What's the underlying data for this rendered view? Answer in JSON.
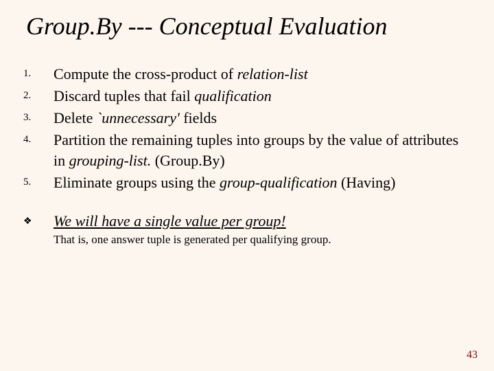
{
  "colors": {
    "background": "#fdf6ee",
    "text": "#000000",
    "page_number": "#8b0000"
  },
  "typography": {
    "family": "Times New Roman",
    "title_size_pt": 36,
    "title_style": "italic",
    "body_size_pt": 22,
    "list_number_size_pt": 15,
    "subnote_size_pt": 17,
    "page_number_size_pt": 16
  },
  "title": "Group.By --- Conceptual Evaluation",
  "steps": [
    {
      "num": "1.",
      "pre": "Compute the cross-product of ",
      "em": "relation-list",
      "post": ""
    },
    {
      "num": "2.",
      "pre": "Discard tuples that fail ",
      "em": "qualification",
      "post": ""
    },
    {
      "num": "3.",
      "pre": "Delete ",
      "em": "`unnecessary'",
      "post": " fields"
    },
    {
      "num": "4.",
      "pre": "Partition the remaining tuples into groups by the value of attributes in ",
      "em": "grouping-list.",
      "post": "  (Group.By)"
    },
    {
      "num": "5.",
      "pre": "Eliminate groups using the ",
      "em": "group-qualification",
      "post": " (Having)"
    }
  ],
  "bullet": {
    "glyph": "❖",
    "text": "We will have a  single value per group",
    "bang": "!"
  },
  "subnote": "That is, one answer tuple is generated per qualifying group.",
  "page_number": "43"
}
